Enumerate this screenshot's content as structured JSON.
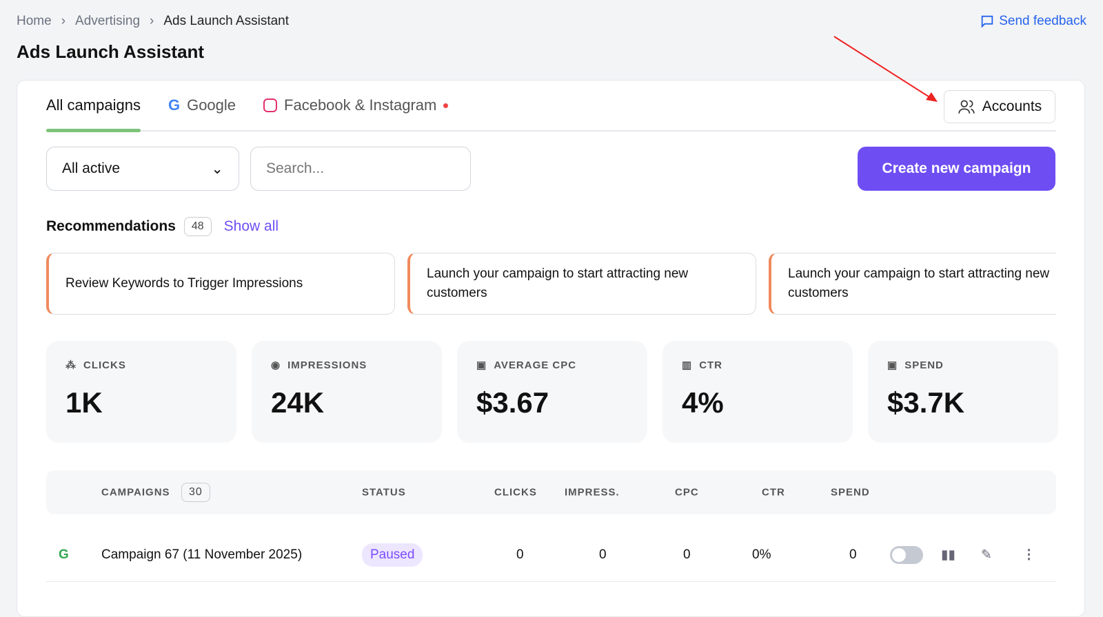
{
  "breadcrumb": [
    "Home",
    "Advertising",
    "Ads Launch Assistant"
  ],
  "feedback": "Send feedback",
  "title": "Ads Launch Assistant",
  "tabs": [
    {
      "label": "All campaigns"
    },
    {
      "label": "Google"
    },
    {
      "label": "Facebook & Instagram"
    }
  ],
  "accounts": "Accounts",
  "filter": "All active",
  "search_placeholder": "Search...",
  "create": "Create new campaign",
  "recommendations": {
    "title": "Recommendations",
    "count": "48",
    "show_all": "Show all",
    "items": [
      "Review Keywords to Trigger Impressions",
      "Launch your campaign to start attracting new customers",
      "Launch your campaign to start attracting new customers"
    ]
  },
  "stats": [
    {
      "label": "CLICKS",
      "value": "1K",
      "icon": "cursor-click"
    },
    {
      "label": "IMPRESSIONS",
      "value": "24K",
      "icon": "eye"
    },
    {
      "label": "AVERAGE CPC",
      "value": "$3.67",
      "icon": "money-cursor"
    },
    {
      "label": "CTR",
      "value": "4%",
      "icon": "chart-plus"
    },
    {
      "label": "SPEND",
      "value": "$3.7K",
      "icon": "money-plus"
    }
  ],
  "table": {
    "headers": {
      "campaigns": "CAMPAIGNS",
      "count": "30",
      "status": "STATUS",
      "clicks": "CLICKS",
      "impress": "IMPRESS.",
      "cpc": "CPC",
      "ctr": "CTR",
      "spend": "SPEND"
    },
    "rows": [
      {
        "name": "Campaign 67 (11 November 2025)",
        "status": "Paused",
        "clicks": "0",
        "impress": "0",
        "cpc": "0",
        "ctr": "0%",
        "spend": "0",
        "enabled": false
      }
    ]
  },
  "colors": {
    "accent": "#6e4ef2",
    "tab_indicator": "#7cc27a",
    "rec_border": "#f08a5d"
  }
}
